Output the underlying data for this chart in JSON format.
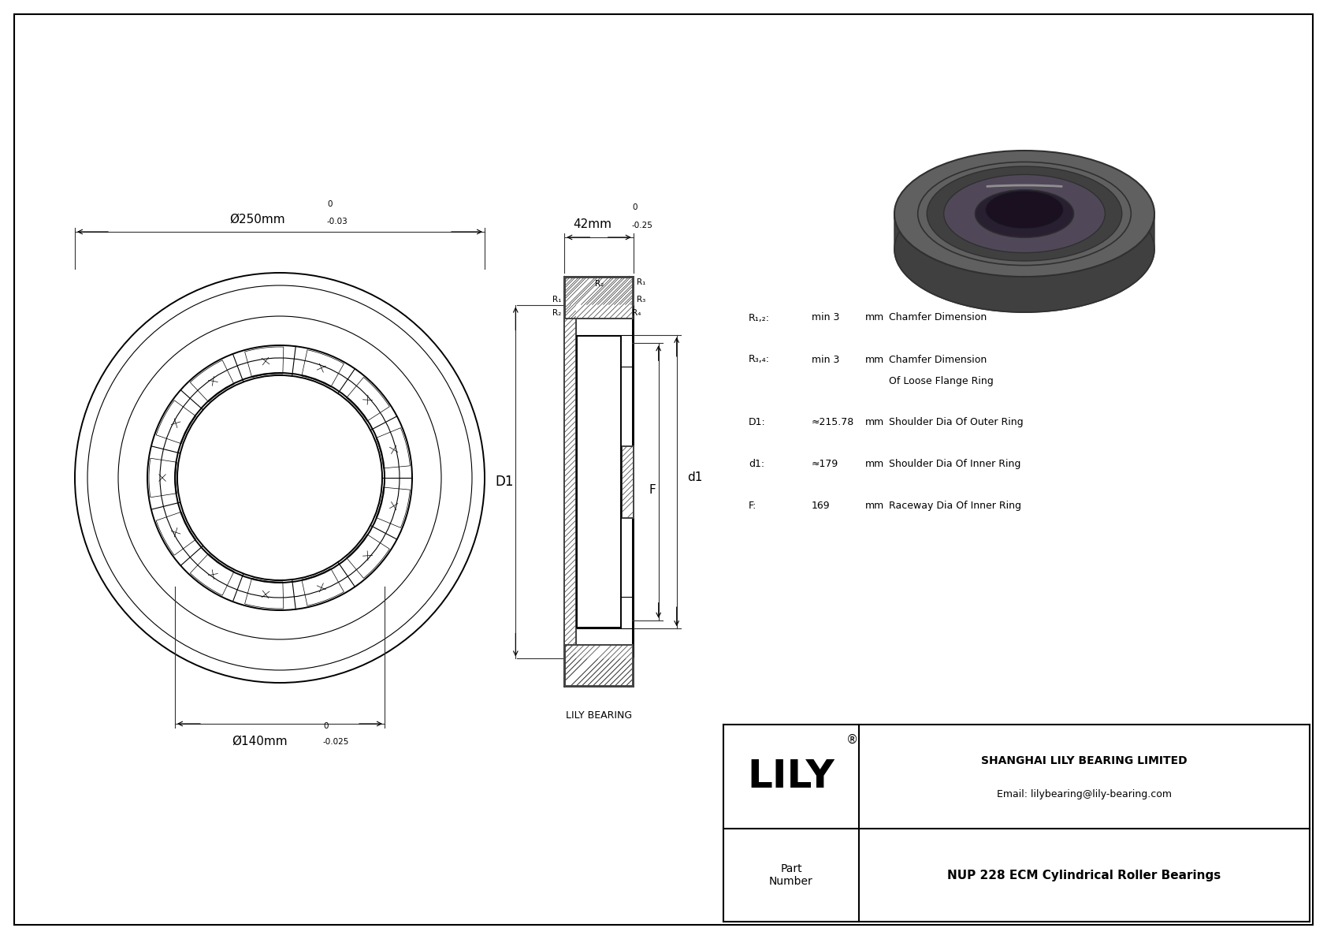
{
  "bg_color": "#ffffff",
  "border_color": "#000000",
  "line_color": "#000000",
  "dim_label_250": "Ø250mm",
  "dim_tol_250_top": "0",
  "dim_tol_250_bot": "-0.03",
  "dim_label_140": "Ø140mm",
  "dim_tol_140_top": "0",
  "dim_tol_140_bot": "-0.025",
  "dim_label_42": "42mm",
  "dim_tol_42_top": "0",
  "dim_tol_42_bot": "-0.25",
  "spec_r12_label": "R₁,₂:",
  "spec_r12_val": "min 3",
  "spec_r12_unit": "mm",
  "spec_r12_desc": "Chamfer Dimension",
  "spec_r34_label": "R₃,₄:",
  "spec_r34_val": "min 3",
  "spec_r34_unit": "mm",
  "spec_r34_desc": "Chamfer Dimension",
  "spec_r34_desc2": "Of Loose Flange Ring",
  "spec_D1_label": "D1:",
  "spec_D1_val": "≈215.78",
  "spec_D1_unit": "mm",
  "spec_D1_desc": "Shoulder Dia Of Outer Ring",
  "spec_d1_label": "d1:",
  "spec_d1_val": "≈179",
  "spec_d1_unit": "mm",
  "spec_d1_desc": "Shoulder Dia Of Inner Ring",
  "spec_F_label": "F:",
  "spec_F_val": "169",
  "spec_F_unit": "mm",
  "spec_F_desc": "Raceway Dia Of Inner Ring",
  "company_name": "SHANGHAI LILY BEARING LIMITED",
  "company_email": "Email: lilybearing@lily-bearing.com",
  "company_logo": "LILY",
  "part_label": "Part\nNumber",
  "part_number": "NUP 228 ECM Cylindrical Roller Bearings",
  "lily_bearing_label": "LILY BEARING",
  "cs_label_D1": "D1",
  "cs_label_d1": "d1",
  "cs_label_F": "F"
}
